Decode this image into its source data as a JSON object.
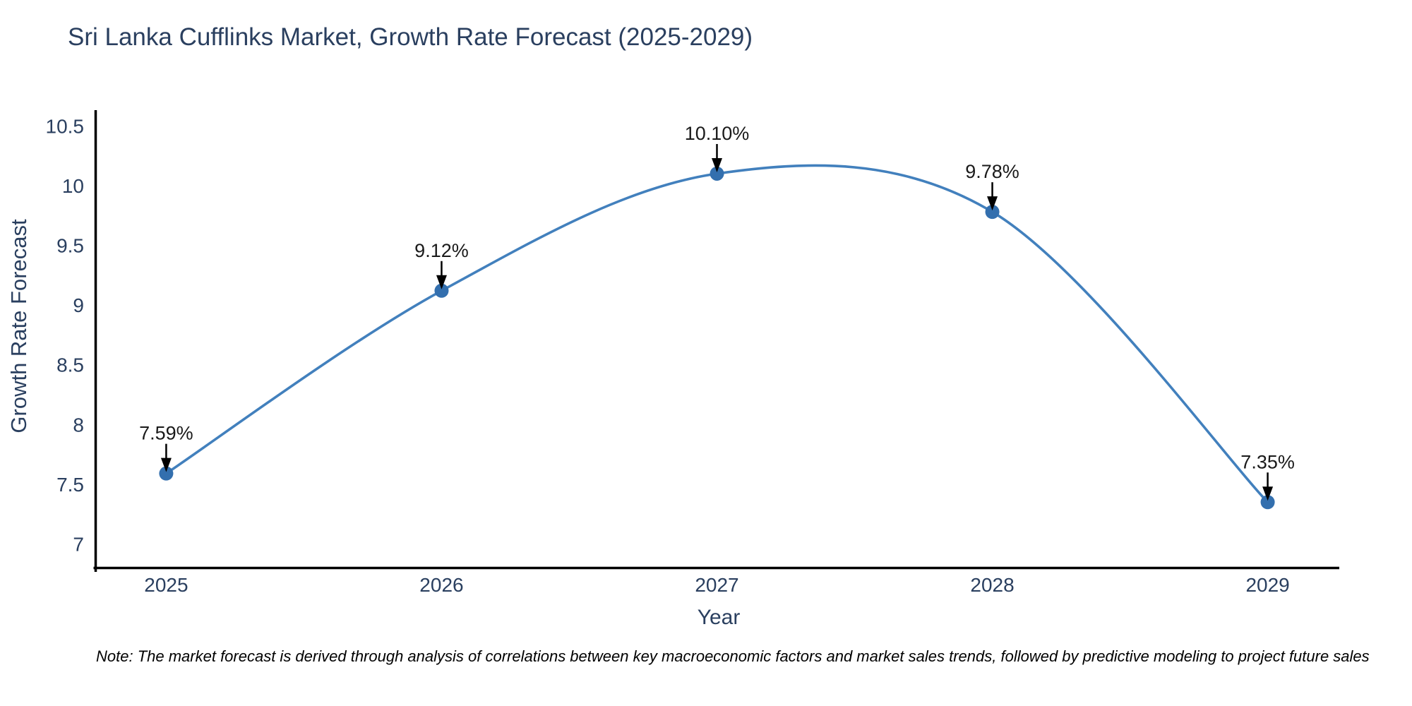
{
  "note": "Note: The market forecast is derived through analysis of correlations between key macroeconomic factors and market sales trends, followed by predictive modeling to project future sales",
  "chart_data": {
    "type": "line",
    "title": "Sri Lanka Cufflinks Market, Growth Rate Forecast (2025-2029)",
    "xlabel": "Year",
    "ylabel": "Growth Rate Forecast",
    "x": [
      2025,
      2026,
      2027,
      2028,
      2029
    ],
    "y": [
      7.59,
      9.12,
      10.1,
      9.78,
      7.35
    ],
    "point_labels": [
      "7.59%",
      "9.12%",
      "10.10%",
      "9.78%",
      "7.35%"
    ],
    "xtick_labels": [
      "2025",
      "2026",
      "2027",
      "2028",
      "2029"
    ],
    "ytick_labels": [
      "7",
      "7.5",
      "8",
      "8.5",
      "9",
      "9.5",
      "10",
      "10.5"
    ],
    "ytick_values": [
      7,
      7.5,
      8,
      8.5,
      9,
      9.5,
      10,
      10.5
    ],
    "xlim": [
      2024.74,
      2029.26
    ],
    "ylim": [
      6.79,
      10.62
    ],
    "line_shape": "spline",
    "grid": false,
    "legend": "none",
    "colors": {
      "line": "#4280bd",
      "marker": "#336fae",
      "axis": "#000000",
      "tick_text": "#2a3f5f",
      "annotation_text": "#1a1a1a",
      "arrow": "#000000",
      "background": "#ffffff"
    }
  }
}
